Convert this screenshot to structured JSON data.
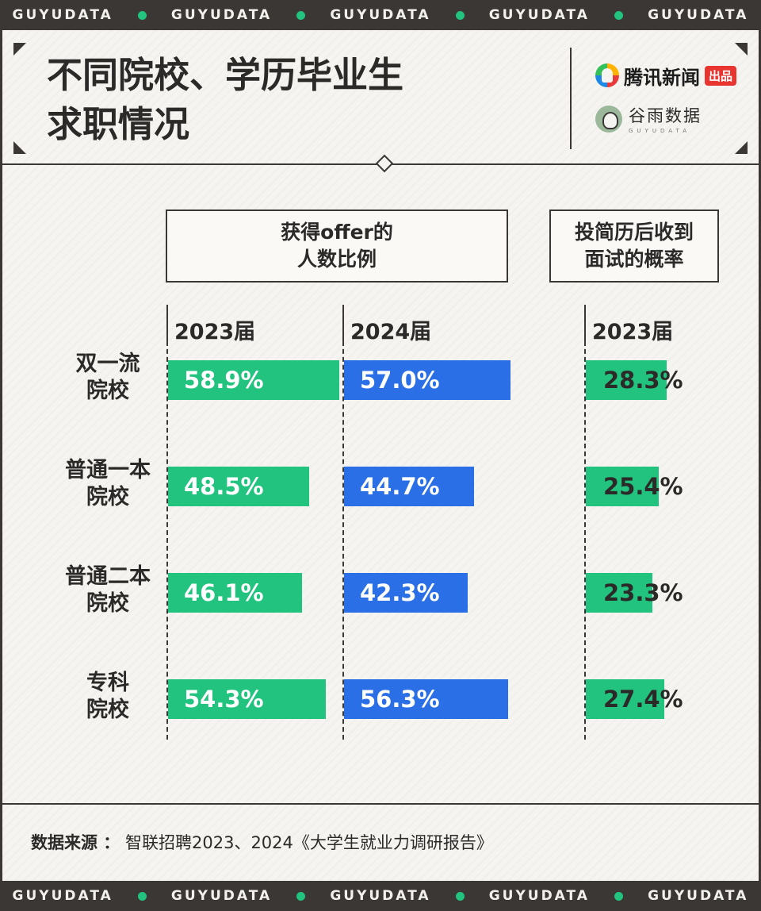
{
  "banner": {
    "items": [
      "GUYUDATA",
      "GUYUDATA",
      "GUYUDATA",
      "GUYUDATA",
      "GUYUDATA"
    ]
  },
  "header": {
    "title_line1": "不同院校、学历毕业生",
    "title_line2": "求职情况",
    "logo_tencent": "腾讯新闻",
    "logo_tencent_badge": "出品",
    "logo_guyu_cn": "谷雨数据",
    "logo_guyu_en": "GUYUDATA"
  },
  "colors": {
    "green": "#21c37e",
    "blue": "#2a6fe6",
    "dark": "#3a3735"
  },
  "chart_data": {
    "type": "bar",
    "groups": [
      {
        "header": "获得offer的\n人数比例",
        "series": [
          {
            "name": "2023届",
            "color": "#21c37e",
            "values": [
              58.9,
              48.5,
              46.1,
              54.3
            ]
          },
          {
            "name": "2024届",
            "color": "#2a6fe6",
            "values": [
              57.0,
              44.7,
              42.3,
              56.3
            ]
          }
        ]
      },
      {
        "header": "投简历后收到\n面试的概率",
        "series": [
          {
            "name": "2023届",
            "color": "#21c37e",
            "values": [
              28.3,
              25.4,
              23.3,
              27.4
            ]
          }
        ]
      }
    ],
    "categories": [
      "双一流\n院校",
      "普通一本\n院校",
      "普通二本\n院校",
      "专科\n院校"
    ],
    "labels": {
      "offer_2023": [
        "58.9%",
        "48.5%",
        "46.1%",
        "54.3%"
      ],
      "offer_2024": [
        "57.0%",
        "44.7%",
        "42.3%",
        "56.3%"
      ],
      "interview_2023": [
        "28.3%",
        "25.4%",
        "23.3%",
        "27.4%"
      ]
    },
    "unit": "%"
  },
  "footer": {
    "source_label": "数据来源 ：",
    "source_text": "智联招聘2023、2024《大学生就业力调研报告》"
  }
}
